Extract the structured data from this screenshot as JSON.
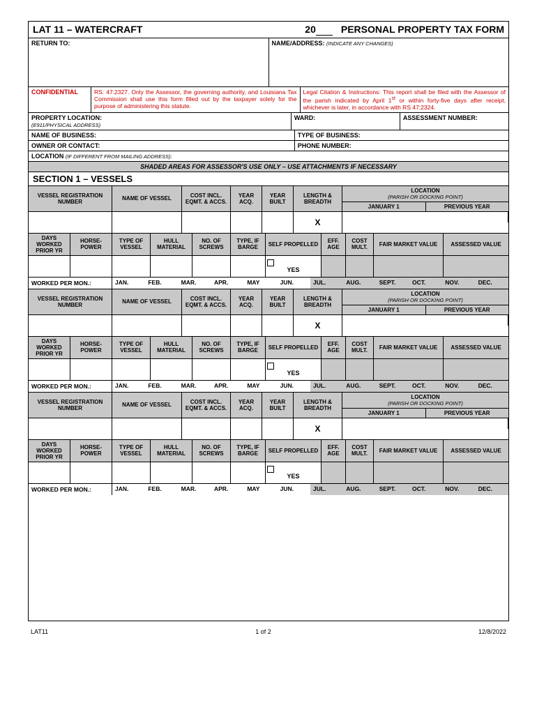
{
  "header": {
    "form_title": "LAT 11 – WATERCRAFT",
    "year_prefix": "20",
    "form_type": "PERSONAL PROPERTY TAX FORM",
    "return_to": "RETURN TO:",
    "name_address": "NAME/ADDRESS:",
    "name_address_note": "(INDICATE ANY CHANGES)"
  },
  "confidential": {
    "label": "CONFIDENTIAL",
    "text1": "RS: 47:2327. Only the Assessor, the governing authority, and Louisiana Tax Commission shall use this form filled out by the taxpayer solely for the purpose of administering this statute.",
    "text2a": "Legal Citation & Instructions:",
    "text2b": "This report shall be filed with the Assessor of the parish indicated by April 1",
    "text2sup": "st",
    "text2c": " or within forty-five days after receipt, whichever is later, in accordance with RS 47:2324."
  },
  "info": {
    "property_location": "PROPERTY LOCATION:",
    "property_location_sub": "(E911/PHYSICAL ADDRESS)",
    "ward": "WARD:",
    "assessment_number": "ASSESSMENT NUMBER:",
    "name_business": "NAME OF BUSINESS:",
    "type_business": "TYPE OF BUSINESS:",
    "owner_contact": "OWNER OR CONTACT:",
    "phone": "PHONE NUMBER:",
    "location": "LOCATION",
    "location_sub": "(IF DIFFERENT FROM MAILING ADDRESS):",
    "shaded_note": "SHADED AREAS FOR ASSESSOR'S USE ONLY – USE ATTACHMENTS IF NECESSARY"
  },
  "section1": {
    "title": "SECTION 1 – VESSELS"
  },
  "vhdr": {
    "reg": "VESSEL REGISTRATION NUMBER",
    "name": "NAME OF VESSEL",
    "cost": "COST INCL. EQMT. & ACCS.",
    "yacq": "YEAR ACQ.",
    "ybuilt": "YEAR BUILT",
    "lb": "LENGTH & BREADTH",
    "loc": "LOCATION",
    "loc_sub": "(PARISH OR DOCKING POINT)",
    "jan1": "JANUARY 1",
    "prev": "PREVIOUS YEAR",
    "x": "X",
    "days": "DAYS WORKED PRIOR YR",
    "hp": "HORSE-POWER",
    "tov": "TYPE OF VESSEL",
    "hull": "HULL MATERIAL",
    "screws": "NO. OF SCREWS",
    "barge": "TYPE, IF BARGE",
    "self": "SELF PROPELLED",
    "effage": "EFF. AGE",
    "mult": "COST MULT.",
    "fmv": "FAIR MARKET VALUE",
    "av": "ASSESSED VALUE",
    "yes": "YES",
    "wpm": "WORKED PER MON.:"
  },
  "months": [
    "JAN.",
    "FEB.",
    "MAR.",
    "APR.",
    "MAY",
    "JUN.",
    "JUL.",
    "AUG.",
    "SEPT.",
    "OCT.",
    "NOV.",
    "DEC."
  ],
  "widths": {
    "reg": "120",
    "name": "100",
    "cost": "70",
    "yacq": "45",
    "ybuilt": "45",
    "lb": "70",
    "loc": "215",
    "days": "60",
    "hp": "60",
    "tov": "55",
    "hull": "60",
    "screws": "55",
    "barge": "50",
    "self": "80",
    "effage": "35",
    "mult": "40",
    "fmv": "100",
    "av": "105"
  },
  "footer": {
    "left": "LAT11",
    "center": "1 of 2",
    "right": "12/8/2022"
  },
  "colors": {
    "shade": "#c8c8c8",
    "red": "#cc0000",
    "border": "#000000"
  }
}
